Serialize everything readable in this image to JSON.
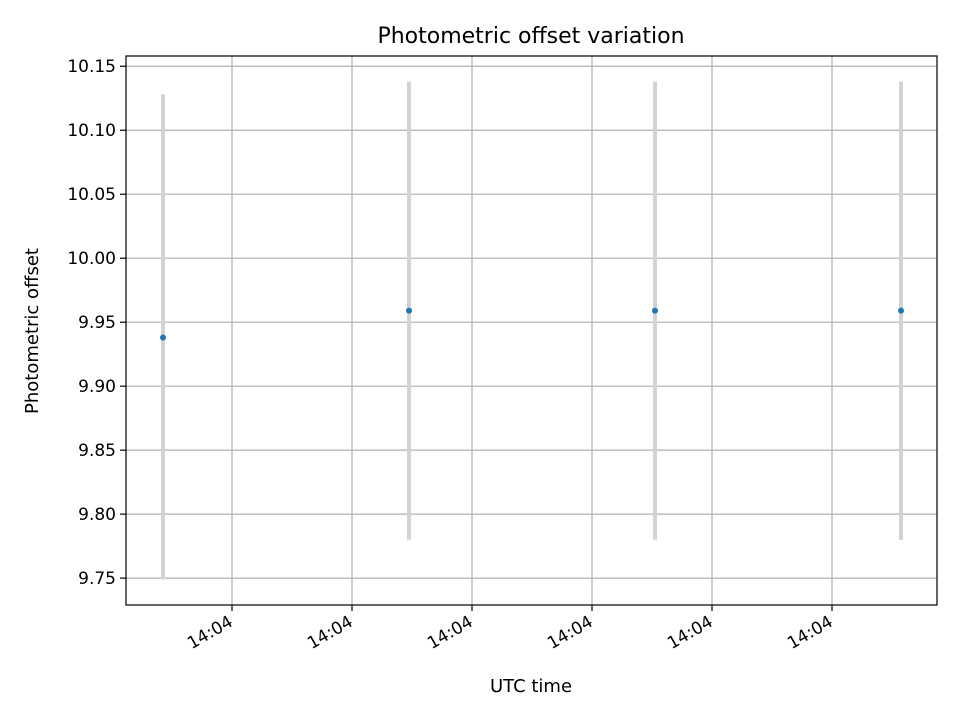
{
  "chart_data": {
    "type": "scatter",
    "title": "Photometric offset variation",
    "xlabel": "UTC time",
    "ylabel": "Photometric offset",
    "x_tick_labels": [
      "14:04",
      "14:04",
      "14:04",
      "14:04",
      "14:04",
      "14:04"
    ],
    "y_ticks": [
      9.75,
      9.8,
      9.85,
      9.9,
      9.95,
      10.0,
      10.05,
      10.1,
      10.15
    ],
    "y_tick_labels": [
      "9.75",
      "9.80",
      "9.85",
      "9.90",
      "9.95",
      "10.00",
      "10.05",
      "10.10",
      "10.15"
    ],
    "ylim": [
      9.729,
      10.158
    ],
    "grid": true,
    "series": [
      {
        "points": [
          {
            "y": 9.938,
            "ylow": 9.749,
            "yhigh": 10.128
          },
          {
            "y": 9.959,
            "ylow": 9.78,
            "yhigh": 10.138
          },
          {
            "y": 9.959,
            "ylow": 9.78,
            "yhigh": 10.138
          },
          {
            "y": 9.959,
            "ylow": 9.78,
            "yhigh": 10.138
          }
        ]
      }
    ],
    "colors": {
      "marker": "#1f77b4",
      "errorbar": "#d3d3d3",
      "grid": "#b0b0b0"
    }
  }
}
